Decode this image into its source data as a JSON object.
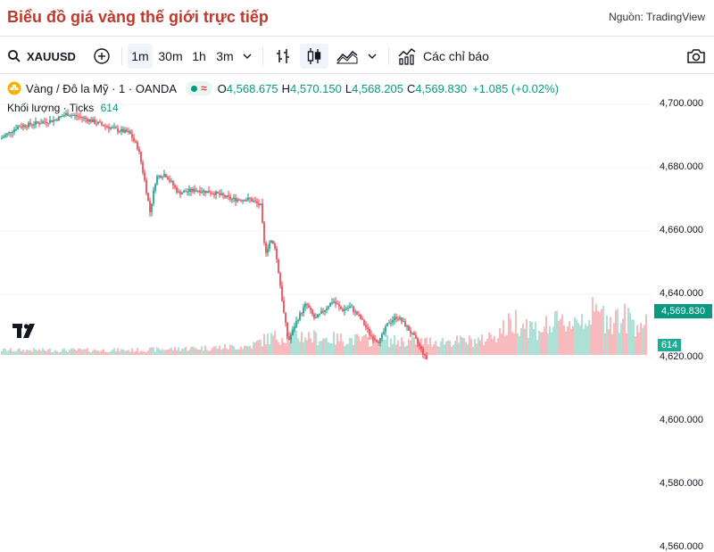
{
  "header": {
    "title": "Biểu đồ giá vàng thế giới trực tiếp",
    "source": "Nguồn: TradingView"
  },
  "toolbar": {
    "symbol": "XAUUSD",
    "intervals": [
      "1m",
      "30m",
      "1h",
      "3m"
    ],
    "active_interval": "1m",
    "indicators_label": "Các chỉ báo",
    "icons": [
      "search-icon",
      "add-symbol-icon",
      "chevron-down-icon",
      "bar-style-icon",
      "candles-icon",
      "area-style-icon",
      "indicators-icon",
      "camera-icon"
    ]
  },
  "legend": {
    "title": "Vàng / Đô la Mỹ · 1 · OANDA",
    "o_label": "O",
    "o": "4,568.675",
    "h_label": "H",
    "h": "4,570.150",
    "l_label": "L",
    "l": "4,568.205",
    "c_label": "C",
    "c": "4,569.830",
    "change": "+1.085 (+0.02%)",
    "volume_label": "Khối lượng · Ticks",
    "volume_value": "614"
  },
  "colors": {
    "up": "#089981",
    "down": "#f23645",
    "title": "#c0392b",
    "vol_up": "#a5dcd2",
    "vol_down": "#f8b4b6"
  },
  "chart_data": {
    "type": "candlestick",
    "y_ticks": [
      "4,700.000",
      "4,680.000",
      "4,660.000",
      "4,640.000",
      "4,620.000",
      "4,600.000",
      "4,580.000",
      "4,560.000"
    ],
    "ylim": [
      4555,
      4705
    ],
    "last_price": "4,569.830",
    "last_price_value": 4569.83,
    "last_volume": "614",
    "price_anchors": [
      [
        0,
        4689
      ],
      [
        20,
        4693
      ],
      [
        40,
        4694
      ],
      [
        60,
        4695
      ],
      [
        75,
        4697
      ],
      [
        90,
        4696
      ],
      [
        110,
        4694
      ],
      [
        130,
        4692
      ],
      [
        145,
        4691
      ],
      [
        155,
        4686
      ],
      [
        162,
        4676
      ],
      [
        168,
        4666
      ],
      [
        175,
        4677
      ],
      [
        185,
        4678
      ],
      [
        200,
        4672
      ],
      [
        220,
        4673
      ],
      [
        240,
        4672
      ],
      [
        260,
        4670
      ],
      [
        280,
        4670
      ],
      [
        292,
        4668
      ],
      [
        297,
        4653
      ],
      [
        303,
        4657
      ],
      [
        308,
        4655
      ],
      [
        313,
        4645
      ],
      [
        318,
        4634
      ],
      [
        323,
        4625
      ],
      [
        333,
        4632
      ],
      [
        343,
        4637
      ],
      [
        353,
        4632
      ],
      [
        363,
        4635
      ],
      [
        373,
        4638
      ],
      [
        383,
        4635
      ],
      [
        393,
        4636
      ],
      [
        405,
        4632
      ],
      [
        415,
        4627
      ],
      [
        425,
        4625
      ],
      [
        435,
        4631
      ],
      [
        445,
        4633
      ],
      [
        455,
        4630
      ],
      [
        465,
        4626
      ],
      [
        475,
        4621
      ],
      [
        485,
        4614
      ],
      [
        495,
        4615
      ],
      [
        505,
        4614
      ],
      [
        515,
        4616
      ],
      [
        525,
        4616
      ],
      [
        535,
        4616
      ],
      [
        545,
        4612
      ],
      [
        555,
        4604
      ],
      [
        563,
        4598
      ],
      [
        568,
        4587
      ],
      [
        573,
        4567
      ],
      [
        578,
        4563
      ],
      [
        583,
        4570
      ],
      [
        590,
        4571
      ],
      [
        597,
        4585
      ],
      [
        604,
        4591
      ],
      [
        612,
        4588
      ],
      [
        618,
        4596
      ],
      [
        624,
        4600
      ],
      [
        630,
        4584
      ],
      [
        637,
        4578
      ],
      [
        645,
        4577
      ],
      [
        652,
        4583
      ],
      [
        660,
        4586
      ],
      [
        667,
        4577
      ],
      [
        675,
        4573
      ],
      [
        683,
        4575
      ],
      [
        690,
        4568
      ],
      [
        697,
        4573
      ],
      [
        703,
        4567
      ],
      [
        710,
        4578
      ],
      [
        717,
        4573
      ],
      [
        724,
        4570
      ]
    ],
    "volume_profile": [
      [
        0,
        0.1
      ],
      [
        150,
        0.1
      ],
      [
        280,
        0.18
      ],
      [
        300,
        0.35
      ],
      [
        330,
        0.42
      ],
      [
        360,
        0.35
      ],
      [
        420,
        0.3
      ],
      [
        480,
        0.28
      ],
      [
        540,
        0.3
      ],
      [
        565,
        0.55
      ],
      [
        580,
        0.75
      ],
      [
        600,
        0.55
      ],
      [
        640,
        0.7
      ],
      [
        660,
        0.85
      ],
      [
        700,
        0.75
      ],
      [
        724,
        0.68
      ]
    ]
  }
}
